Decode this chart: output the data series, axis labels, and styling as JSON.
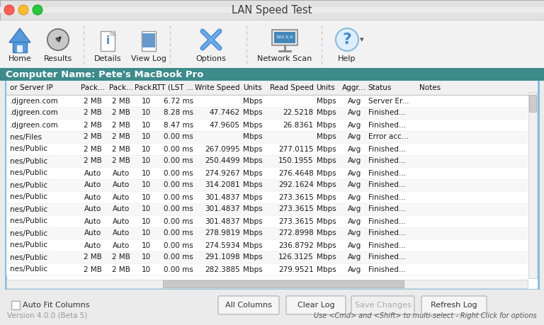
{
  "title": "LAN Speed Test",
  "bg_color": "#ebebeb",
  "titlebar_color": "#e0e0e0",
  "header_row": [
    "or Server IP",
    "Pack...",
    "Pack...",
    "Pack...",
    "RTT (LST ...",
    "Write Speed",
    "Units",
    "Read Speed",
    "Units",
    "Aggr...",
    "Status",
    "Notes"
  ],
  "rows": [
    [
      ".djgreen.com",
      "2 MB",
      "2 MB",
      "10",
      "6.72 ms",
      "",
      "Mbps",
      "",
      "Mbps",
      "Avg",
      "Server Er...",
      ""
    ],
    [
      ".djgreen.com",
      "2 MB",
      "2 MB",
      "10",
      "8.28 ms",
      "47.7462",
      "Mbps",
      "22.5218",
      "Mbps",
      "Avg",
      "Finished...",
      ""
    ],
    [
      ".djgreen.com",
      "2 MB",
      "2 MB",
      "10",
      "8.47 ms",
      "47.9605",
      "Mbps",
      "26.8361",
      "Mbps",
      "Avg",
      "Finished...",
      ""
    ],
    [
      "nes/Files",
      "2 MB",
      "2 MB",
      "10",
      "0.00 ms",
      "",
      "Mbps",
      "",
      "Mbps",
      "Avg",
      "Error acc...",
      ""
    ],
    [
      "nes/Public",
      "2 MB",
      "2 MB",
      "10",
      "0.00 ms",
      "267.0995",
      "Mbps",
      "277.0115",
      "Mbps",
      "Avg",
      "Finished...",
      ""
    ],
    [
      "nes/Public",
      "2 MB",
      "2 MB",
      "10",
      "0.00 ms",
      "250.4499",
      "Mbps",
      "150.1955",
      "Mbps",
      "Avg",
      "Finished...",
      ""
    ],
    [
      "nes/Public",
      "Auto",
      "Auto",
      "10",
      "0.00 ms",
      "274.9267",
      "Mbps",
      "276.4648",
      "Mbps",
      "Avg",
      "Finished...",
      ""
    ],
    [
      "nes/Public",
      "Auto",
      "Auto",
      "10",
      "0.00 ms",
      "314.2081",
      "Mbps",
      "292.1624",
      "Mbps",
      "Avg",
      "Finished...",
      ""
    ],
    [
      "nes/Public",
      "Auto",
      "Auto",
      "10",
      "0.00 ms",
      "301.4837",
      "Mbps",
      "273.3615",
      "Mbps",
      "Avg",
      "Finished...",
      ""
    ],
    [
      "nes/Public",
      "Auto",
      "Auto",
      "10",
      "0.00 ms",
      "301.4837",
      "Mbps",
      "273.3615",
      "Mbps",
      "Avg",
      "Finished...",
      ""
    ],
    [
      "nes/Public",
      "Auto",
      "Auto",
      "10",
      "0.00 ms",
      "301.4837",
      "Mbps",
      "273.3615",
      "Mbps",
      "Avg",
      "Finished...",
      ""
    ],
    [
      "nes/Public",
      "Auto",
      "Auto",
      "10",
      "0.00 ms",
      "278.9819",
      "Mbps",
      "272.8998",
      "Mbps",
      "Avg",
      "Finished...",
      ""
    ],
    [
      "nes/Public",
      "Auto",
      "Auto",
      "10",
      "0.00 ms",
      "274.5934",
      "Mbps",
      "236.8792",
      "Mbps",
      "Avg",
      "Finished...",
      ""
    ],
    [
      "nes/Public",
      "2 MB",
      "2 MB",
      "10",
      "0.00 ms",
      "291.1098",
      "Mbps",
      "126.3125",
      "Mbps",
      "Avg",
      "Finished...",
      ""
    ],
    [
      "nes/Public",
      "2 MB",
      "2 MB",
      "10",
      "0.00 ms",
      "282.3885",
      "Mbps",
      "279.9521",
      "Mbps",
      "Avg",
      "Finished...",
      ""
    ]
  ],
  "computer_name": "Computer Name: Pete's MacBook Pro",
  "version_text": "Version 4.0.0 (Beta 5)",
  "hint_text": "Use <Cmd> and <Shift> to multi-select - Right Click for options",
  "buttons": [
    "All Columns",
    "Clear Log",
    "Save Changes",
    "Refresh Log"
  ],
  "checkbox_label": "Auto Fit Columns",
  "table_border": "#7bbee0",
  "teal_header_bg": "#3d8b8b",
  "text_color": "#1a1a1a",
  "toolbar_sep_color": "#c8c8c8"
}
